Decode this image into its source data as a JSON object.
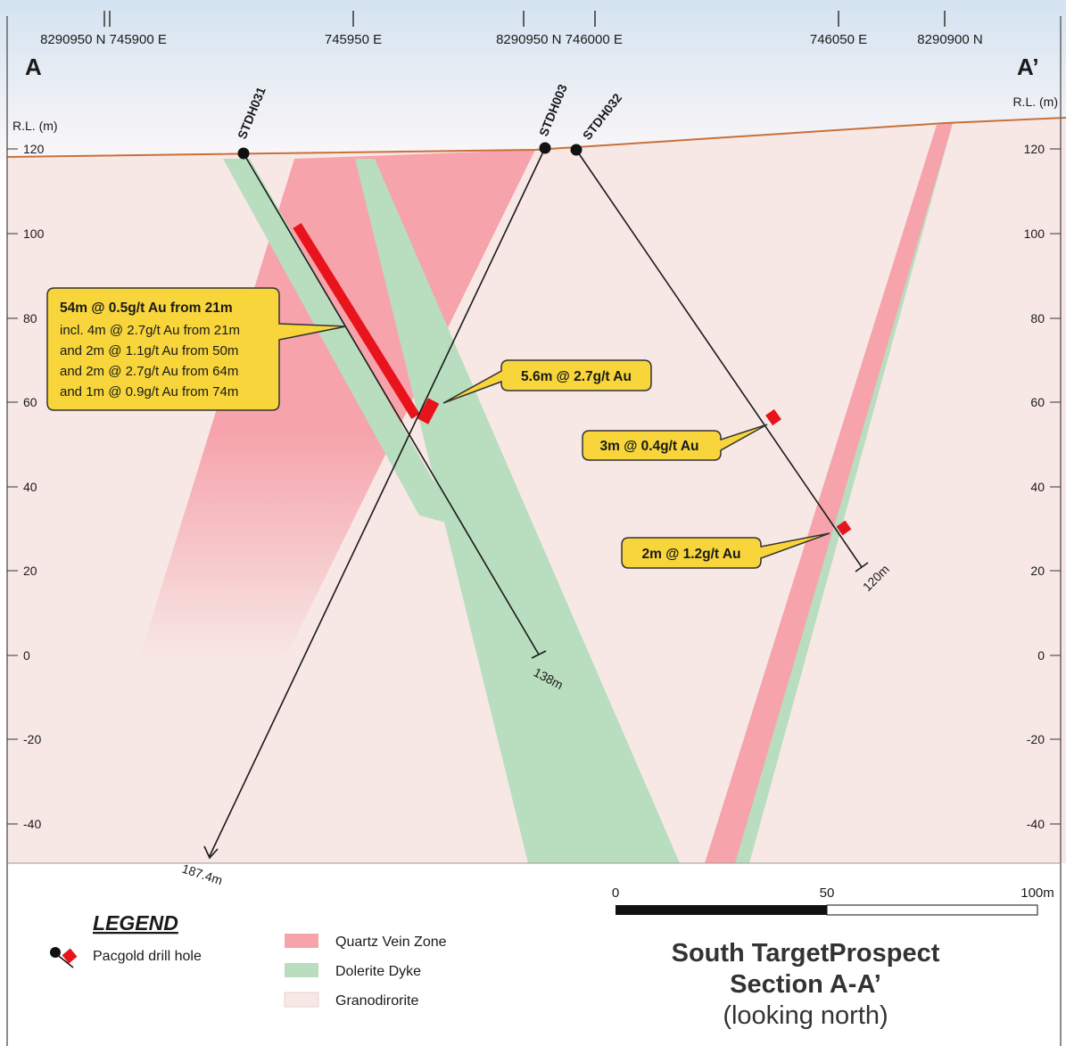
{
  "colors": {
    "sky_top": "#d8e6f2",
    "ground": "#f7e8e6",
    "quartz_vein": "#f6a3ab",
    "dolerite": "#b9ddbf",
    "surface_line": "#c8703a",
    "intercept": "#e8141c",
    "callout_fill": "#f7d53b",
    "text": "#1a1a1a"
  },
  "header": {
    "eastings": [
      {
        "id": "e1",
        "label": "8290950 N 745900 E"
      },
      {
        "id": "e2",
        "label": "745950 E"
      },
      {
        "id": "e3",
        "label": "8290950 N  746000 E"
      },
      {
        "id": "e4",
        "label": "746050 E"
      },
      {
        "id": "e5",
        "label": "8290900 N"
      }
    ],
    "section_start": "A",
    "section_end": "A’"
  },
  "axis": {
    "left_title": "R.L. (m)",
    "right_title": "R.L. (m)",
    "ticks": [
      "120",
      "100",
      "80",
      "60",
      "40",
      "20",
      "0",
      "-20",
      "-40"
    ]
  },
  "drill_holes": [
    {
      "id": "STDH031",
      "name": "STDH031",
      "end_depth": "138m"
    },
    {
      "id": "STDH003",
      "name": "STDH003",
      "end_depth": "187.4m"
    },
    {
      "id": "STDH032",
      "name": "STDH032",
      "end_depth": "120m"
    }
  ],
  "callouts": {
    "main": {
      "headline": "54m @ 0.5g/t Au from 21m",
      "lines": [
        "incl. 4m @ 2.7g/t Au from 21m",
        "and 2m @ 1.1g/t Au from 50m",
        "and 2m @ 2.7g/t Au from 64m",
        "and 1m @ 0.9g/t Au from 74m"
      ]
    },
    "stdh003": "5.6m @ 2.7g/t Au",
    "stdh032_upper": "3m @ 0.4g/t Au",
    "stdh032_lower": "2m @ 1.2g/t Au"
  },
  "legend": {
    "title": "LEGEND",
    "drill_hole": "Pacgold drill hole",
    "items": [
      {
        "id": "quartz",
        "label": "Quartz Vein Zone",
        "color": "#f6a3ab"
      },
      {
        "id": "dolerite",
        "label": "Dolerite Dyke",
        "color": "#b9ddbf"
      },
      {
        "id": "granodiorite",
        "label": "Granodirorite",
        "color": "#f7e8e6"
      }
    ]
  },
  "scale_bar": {
    "label_0": "0",
    "label_mid": "50",
    "label_end": "100m"
  },
  "title_block": {
    "line1": "South TargetProspect",
    "line2": "Section A-A’",
    "line3": "(looking north)"
  }
}
